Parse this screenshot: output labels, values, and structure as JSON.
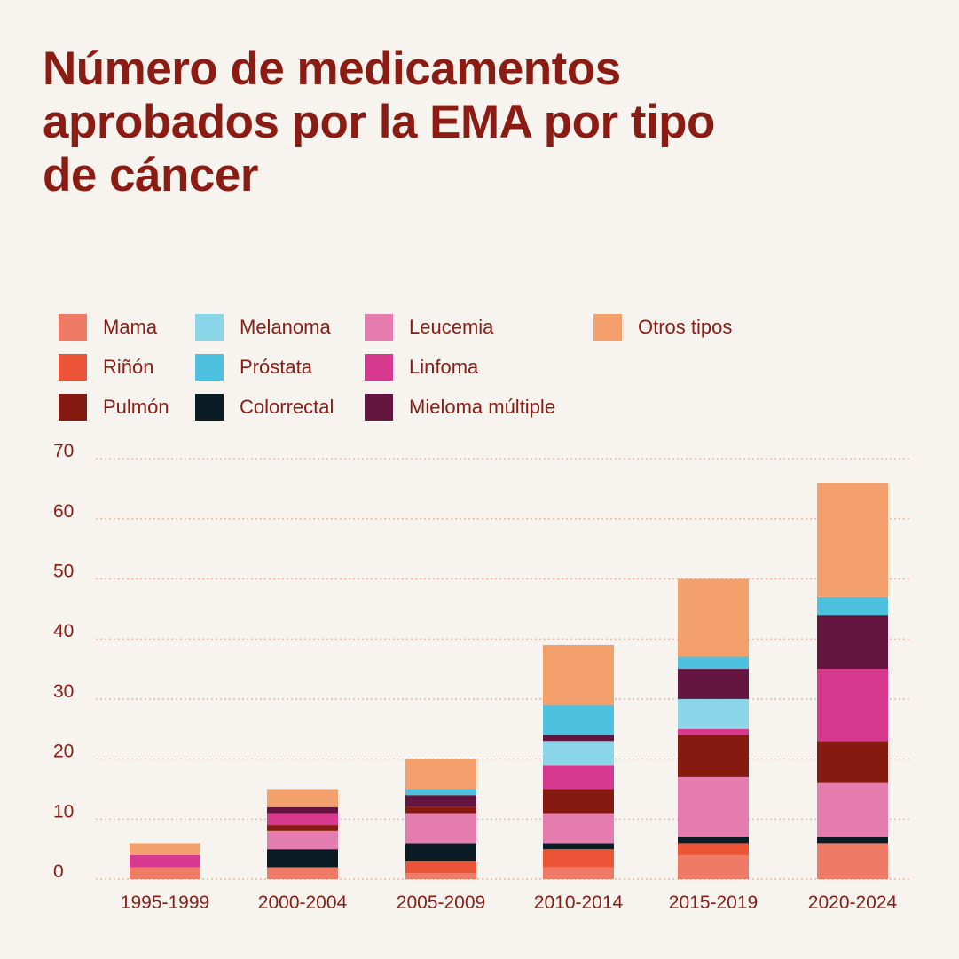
{
  "chart_data": {
    "type": "bar",
    "stacked": true,
    "title": "Número de medicamentos aprobados por la EMA por tipo de cáncer",
    "categories": [
      "1995-1999",
      "2000-2004",
      "2005-2009",
      "2010-2014",
      "2015-2019",
      "2020-2024"
    ],
    "ylim": [
      0,
      70
    ],
    "yticks": [
      0,
      10,
      20,
      30,
      40,
      50,
      60,
      70
    ],
    "grid": true,
    "legend_position": "top-left",
    "series": [
      {
        "name": "Mama",
        "color": "#ef7b66",
        "values": [
          2,
          2,
          1,
          2,
          4,
          6
        ]
      },
      {
        "name": "Riñón",
        "color": "#ec5438",
        "values": [
          0,
          0,
          2,
          3,
          2,
          0
        ]
      },
      {
        "name": "Colorrectal",
        "color": "#0b1c24",
        "values": [
          0,
          3,
          3,
          1,
          1,
          1
        ]
      },
      {
        "name": "Leucemia",
        "color": "#e57daf",
        "values": [
          0,
          3,
          5,
          5,
          10,
          9
        ]
      },
      {
        "name": "Pulmón",
        "color": "#861910",
        "values": [
          0,
          1,
          1,
          4,
          7,
          7
        ]
      },
      {
        "name": "Linfoma",
        "color": "#d6398e",
        "values": [
          2,
          2,
          0,
          4,
          1,
          12
        ]
      },
      {
        "name": "Melanoma",
        "color": "#8ad6e8",
        "values": [
          0,
          0,
          0,
          4,
          5,
          0
        ]
      },
      {
        "name": "Mieloma múltiple",
        "color": "#64153f",
        "values": [
          0,
          1,
          2,
          1,
          5,
          9
        ]
      },
      {
        "name": "Próstata",
        "color": "#4dc1de",
        "values": [
          0,
          0,
          1,
          5,
          2,
          3
        ]
      },
      {
        "name": "Otros tipos",
        "color": "#f3a06d",
        "values": [
          2,
          3,
          5,
          10,
          13,
          19
        ]
      }
    ]
  },
  "legend": [
    {
      "name": "Mama",
      "color": "#ef7b66"
    },
    {
      "name": "Riñón",
      "color": "#ec5438"
    },
    {
      "name": "Pulmón",
      "color": "#861910"
    },
    {
      "name": "Melanoma",
      "color": "#8ad6e8"
    },
    {
      "name": "Próstata",
      "color": "#4dc1de"
    },
    {
      "name": "Colorrectal",
      "color": "#0b1c24"
    },
    {
      "name": "Leucemia",
      "color": "#e57daf"
    },
    {
      "name": "Linfoma",
      "color": "#d6398e"
    },
    {
      "name": "Mieloma múltiple",
      "color": "#64153f"
    },
    {
      "name": "Otros tipos",
      "color": "#f3a06d"
    }
  ],
  "colors": {
    "text": "#8a1c13",
    "grid": "#e8a894",
    "background": "#f7f3ef"
  }
}
